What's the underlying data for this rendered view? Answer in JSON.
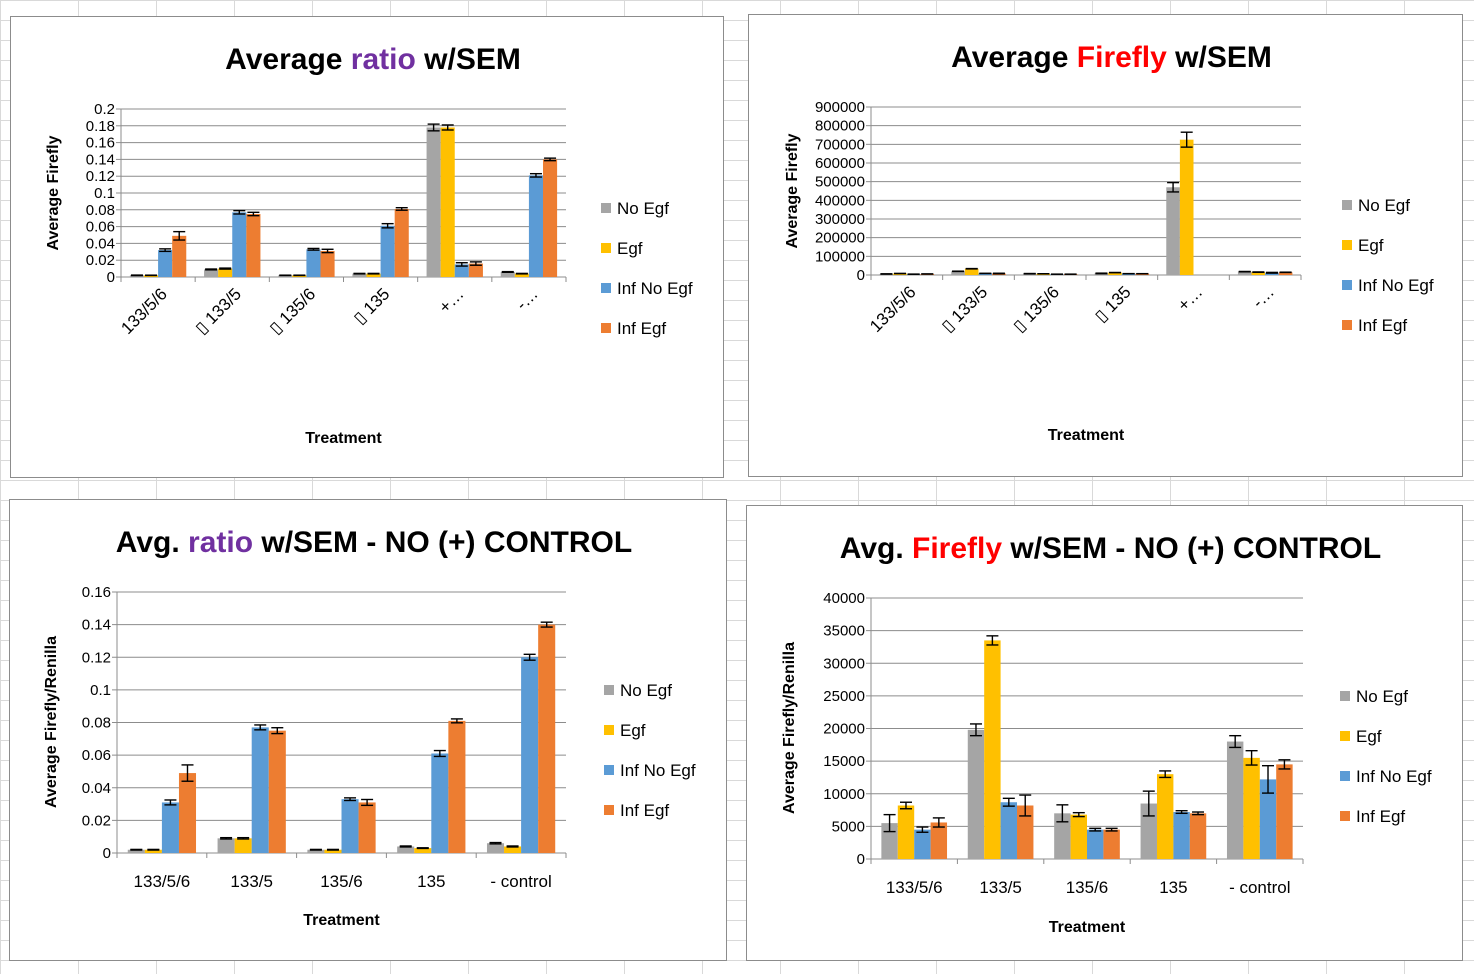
{
  "chart_data": [
    {
      "type": "bar",
      "title_parts": [
        "Average ",
        "ratio",
        " w/SEM"
      ],
      "title_colors": [
        "#000000",
        "#7030a0",
        "#000000"
      ],
      "ylabel": "Average Firefly",
      "xlabel": "Treatment",
      "ylim": [
        0,
        0.2
      ],
      "yticks": [
        "0",
        "0.02",
        "0.04",
        "0.06",
        "0.08",
        "0.1",
        "0.12",
        "0.14",
        "0.16",
        "0.18",
        "0.2"
      ],
      "categories": [
        "133/5/6",
        "▯ 133/5",
        "▯ 135/6",
        "▯ 135",
        "+…",
        "-…"
      ],
      "category_rotation": -45,
      "series": [
        {
          "name": "No Egf",
          "color": "#a5a5a5",
          "values": [
            0.002,
            0.009,
            0.002,
            0.004,
            0.178,
            0.006
          ],
          "errors": [
            0.0003,
            0.0005,
            0.0002,
            0.0003,
            0.004,
            0.0004
          ]
        },
        {
          "name": "Egf",
          "color": "#ffc000",
          "values": [
            0.002,
            0.01,
            0.002,
            0.004,
            0.178,
            0.004
          ],
          "errors": [
            0.0002,
            0.0006,
            0.0002,
            0.0003,
            0.003,
            0.0003
          ]
        },
        {
          "name": "Inf No Egf",
          "color": "#5b9bd5",
          "values": [
            0.032,
            0.077,
            0.033,
            0.061,
            0.015,
            0.121
          ],
          "errors": [
            0.0015,
            0.002,
            0.001,
            0.0025,
            0.002,
            0.002
          ]
        },
        {
          "name": "Inf Egf",
          "color": "#ed7d31",
          "values": [
            0.049,
            0.075,
            0.031,
            0.081,
            0.016,
            0.14
          ],
          "errors": [
            0.005,
            0.002,
            0.002,
            0.0015,
            0.002,
            0.0015
          ]
        }
      ]
    },
    {
      "type": "bar",
      "title_parts": [
        "Average ",
        "Firefly",
        " w/SEM"
      ],
      "title_colors": [
        "#000000",
        "#ff0000",
        "#000000"
      ],
      "ylabel": "Average Firefly",
      "xlabel": "Treatment",
      "ylim": [
        0,
        900000
      ],
      "yticks": [
        "0",
        "100000",
        "200000",
        "300000",
        "400000",
        "500000",
        "600000",
        "700000",
        "800000",
        "900000"
      ],
      "categories": [
        "133/5/6",
        "▯ 133/5",
        "▯ 135/6",
        "▯ 135",
        "+…",
        "-…"
      ],
      "category_rotation": -45,
      "series": [
        {
          "name": "No Egf",
          "color": "#a5a5a5",
          "values": [
            5500,
            19800,
            7000,
            8500,
            470000,
            18000
          ],
          "errors": [
            1000,
            800,
            1000,
            1500,
            25000,
            1000
          ]
        },
        {
          "name": "Egf",
          "color": "#ffc000",
          "values": [
            8000,
            33500,
            6500,
            13000,
            725000,
            15500
          ],
          "errors": [
            500,
            1000,
            500,
            500,
            40000,
            1000
          ]
        },
        {
          "name": "Inf No Egf",
          "color": "#5b9bd5",
          "values": [
            4500,
            8500,
            4500,
            7200,
            0,
            12000
          ],
          "errors": [
            500,
            500,
            300,
            300,
            0,
            2000
          ]
        },
        {
          "name": "Inf Egf",
          "color": "#ed7d31",
          "values": [
            5500,
            8000,
            4500,
            7000,
            0,
            14500
          ],
          "errors": [
            500,
            1500,
            300,
            300,
            0,
            700
          ]
        }
      ]
    },
    {
      "type": "bar",
      "title_parts": [
        "Avg. ",
        "ratio",
        " w/SEM - NO (+) CONTROL"
      ],
      "title_colors": [
        "#000000",
        "#7030a0",
        "#000000"
      ],
      "ylabel": "Average Firefly/Renilla",
      "xlabel": "Treatment",
      "ylim": [
        0,
        0.16
      ],
      "yticks": [
        "0",
        "0.02",
        "0.04",
        "0.06",
        "0.08",
        "0.1",
        "0.12",
        "0.14",
        "0.16"
      ],
      "categories": [
        "133/5/6",
        "133/5",
        "135/6",
        "135",
        "- control"
      ],
      "category_rotation": 0,
      "series": [
        {
          "name": "No Egf",
          "color": "#a5a5a5",
          "values": [
            0.002,
            0.009,
            0.002,
            0.004,
            0.006
          ],
          "errors": [
            0.0002,
            0.0004,
            0.0002,
            0.0003,
            0.0004
          ]
        },
        {
          "name": "Egf",
          "color": "#ffc000",
          "values": [
            0.002,
            0.009,
            0.002,
            0.003,
            0.004
          ],
          "errors": [
            0.0002,
            0.0004,
            0.0002,
            0.0002,
            0.0003
          ]
        },
        {
          "name": "Inf No Egf",
          "color": "#5b9bd5",
          "values": [
            0.031,
            0.077,
            0.033,
            0.061,
            0.12
          ],
          "errors": [
            0.0015,
            0.0015,
            0.0008,
            0.0018,
            0.0018
          ]
        },
        {
          "name": "Inf Egf",
          "color": "#ed7d31",
          "values": [
            0.049,
            0.075,
            0.031,
            0.081,
            0.14
          ],
          "errors": [
            0.005,
            0.0018,
            0.0018,
            0.0012,
            0.0015
          ]
        }
      ]
    },
    {
      "type": "bar",
      "title_parts": [
        "Avg. ",
        "Firefly",
        " w/SEM - NO (+) CONTROL"
      ],
      "title_colors": [
        "#000000",
        "#ff0000",
        "#000000"
      ],
      "ylabel": "Average Firefly/Renilla",
      "xlabel": "Treatment",
      "ylim": [
        0,
        40000
      ],
      "yticks": [
        "0",
        "5000",
        "10000",
        "15000",
        "20000",
        "25000",
        "30000",
        "35000",
        "40000"
      ],
      "categories": [
        "133/5/6",
        "133/5",
        "135/6",
        "135",
        "- control"
      ],
      "category_rotation": 0,
      "series": [
        {
          "name": "No Egf",
          "color": "#a5a5a5",
          "values": [
            5500,
            19800,
            7000,
            8500,
            18000
          ],
          "errors": [
            1300,
            900,
            1300,
            1900,
            900
          ]
        },
        {
          "name": "Egf",
          "color": "#ffc000",
          "values": [
            8200,
            33500,
            6800,
            13000,
            15500
          ],
          "errors": [
            500,
            700,
            300,
            500,
            1100
          ]
        },
        {
          "name": "Inf No Egf",
          "color": "#5b9bd5",
          "values": [
            4500,
            8700,
            4500,
            7200,
            12200
          ],
          "errors": [
            400,
            600,
            200,
            200,
            2100
          ]
        },
        {
          "name": "Inf Egf",
          "color": "#ed7d31",
          "values": [
            5600,
            8200,
            4500,
            7000,
            14500
          ],
          "errors": [
            700,
            1600,
            200,
            200,
            700
          ]
        }
      ]
    }
  ]
}
